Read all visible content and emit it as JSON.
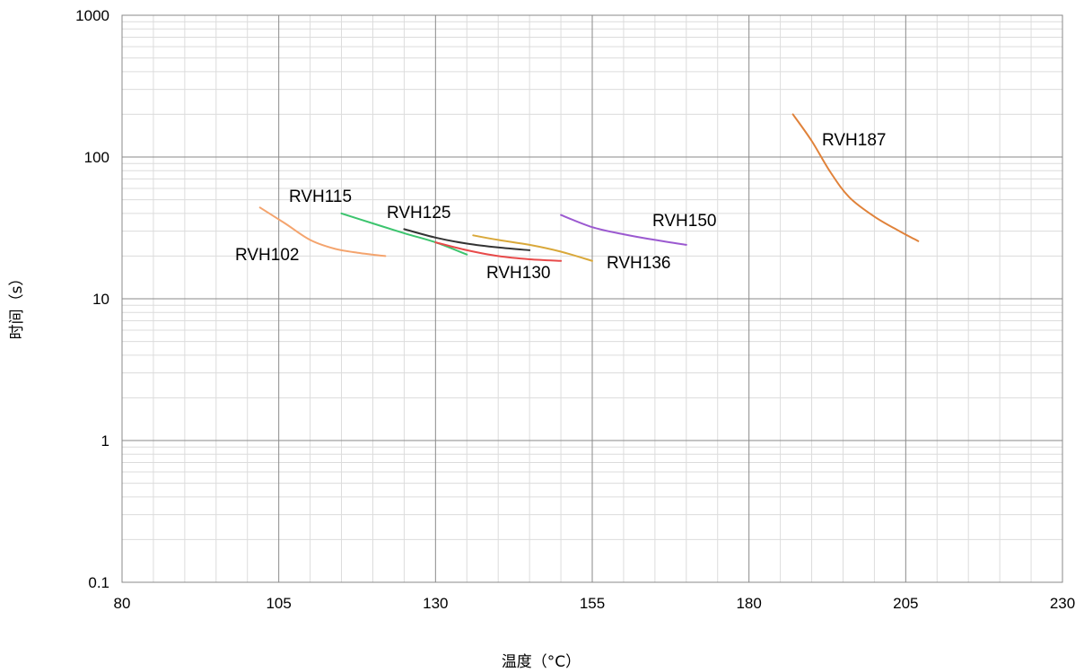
{
  "chart_data": {
    "type": "line",
    "xlabel": "温度（°C）",
    "ylabel": "时间（s）",
    "xlim": [
      80,
      230
    ],
    "ylim": [
      0.1,
      1000
    ],
    "y_scale": "log",
    "grid": true,
    "x_ticks": [
      "80",
      "105",
      "130",
      "155",
      "180",
      "205",
      "230"
    ],
    "y_ticks": [
      "0.1",
      "1",
      "10",
      "100",
      "1000"
    ],
    "series": [
      {
        "name": "RVH102",
        "color": "#f4a46e",
        "x": [
          102,
          106,
          110,
          114,
          118,
          122
        ],
        "y": [
          44,
          34,
          26,
          22.5,
          21,
          20
        ]
      },
      {
        "name": "RVH115",
        "color": "#3cc46e",
        "x": [
          115,
          120,
          125,
          130,
          135
        ],
        "y": [
          40,
          34,
          29,
          25,
          20.5
        ]
      },
      {
        "name": "RVH125",
        "color": "#333333",
        "x": [
          125,
          130,
          135,
          140,
          145
        ],
        "y": [
          31,
          27,
          24.5,
          23,
          22
        ]
      },
      {
        "name": "RVH130",
        "color": "#e84a4a",
        "x": [
          130,
          135,
          140,
          145,
          150
        ],
        "y": [
          25,
          22,
          20,
          19,
          18.5
        ]
      },
      {
        "name": "RVH136",
        "color": "#d9a83a",
        "x": [
          136,
          140,
          145,
          150,
          155
        ],
        "y": [
          28,
          26,
          24,
          21.5,
          18.5
        ]
      },
      {
        "name": "RVH150",
        "color": "#9b59d0",
        "x": [
          150,
          155,
          160,
          165,
          170
        ],
        "y": [
          39,
          32,
          28.5,
          26,
          24
        ]
      },
      {
        "name": "RVH187",
        "color": "#e0823a",
        "x": [
          187,
          190,
          193,
          196,
          200,
          204,
          207
        ],
        "y": [
          200,
          130,
          78,
          52,
          38,
          30,
          25.5
        ]
      }
    ]
  }
}
